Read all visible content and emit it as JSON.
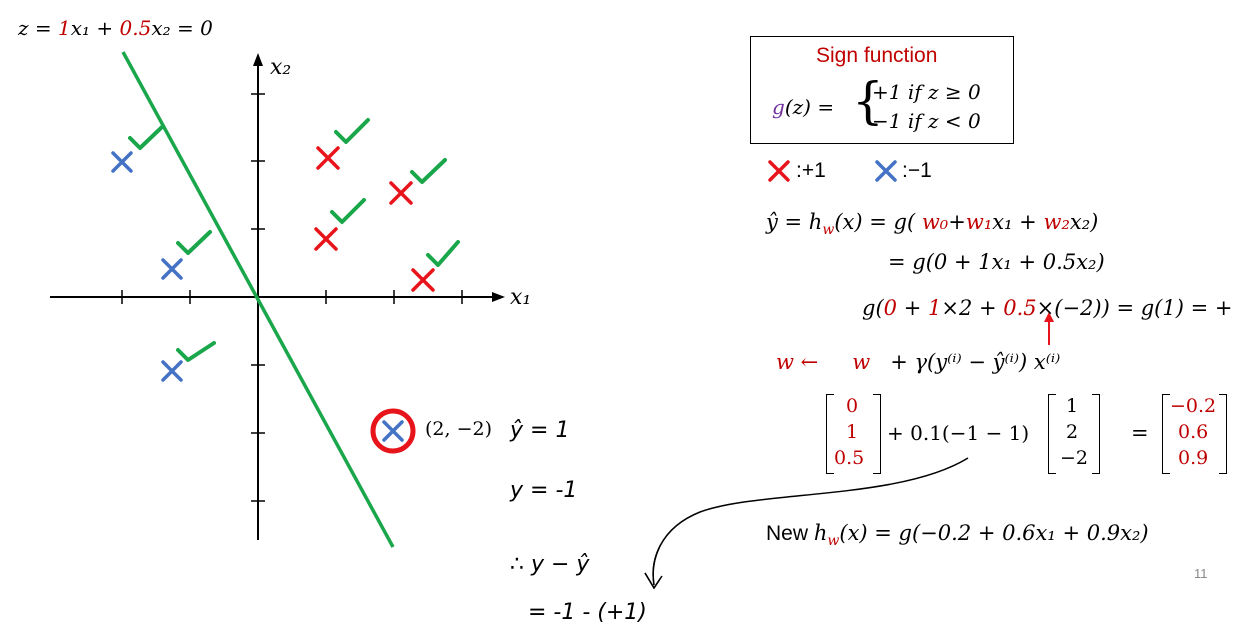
{
  "plot": {
    "line_label": {
      "z": "z = ",
      "w1": "1",
      "x1": "x₁ + ",
      "w2": "0.5",
      "x2": "x₂ = 0"
    },
    "x_axis_label": "x₁",
    "y_axis_label": "x₂",
    "circled_point_coord": "(2, −2)",
    "colors": {
      "red": "#e8141b",
      "blue": "#4472c4",
      "green": "#1aa64a",
      "circle": "#e8141b"
    }
  },
  "handwriting": {
    "line1": "ŷ = 1",
    "line2": "y = -1",
    "line3": "∴ y − ŷ",
    "line4": "= -1 - (+1)"
  },
  "sign_box": {
    "title": "Sign function",
    "g": "g",
    "lhs": "(z) =",
    "case1": "+1  if z ≥ 0",
    "case2": "−1  if z < 0"
  },
  "legend": {
    "pos": ":+1",
    "neg": ":−1"
  },
  "equations": {
    "yhat_lhs": "ŷ = h",
    "w_sub": "w",
    "yhat_mid": "(x) = g( ",
    "w0": "w₀",
    "plus_w1": "+",
    "w1": "w₁",
    "x1_term": "x₁ + ",
    "w2": "w₂",
    "x2_term": "x₂)",
    "line2": "= g(0 + 1x₁ + 0.5x₂)",
    "line3_a": "g(",
    "line3_b": "0",
    "line3_c": " + ",
    "line3_d": "1",
    "line3_e": "×2 + ",
    "line3_f": "0.5",
    "line3_g": "×(−2)) = g(1) = +",
    "update_w1": "w ←",
    "update_w2": "w",
    "update_rest": "+ γ(y⁽ⁱ⁾ − ŷ⁽ⁱ⁾) x⁽ⁱ⁾",
    "vec_w": [
      "0",
      "1",
      "0.5"
    ],
    "mult": "+ 0.1(−1 − 1)",
    "vec_x": [
      "1",
      "2",
      "−2"
    ],
    "equals": "=",
    "vec_new": [
      "−0.2",
      "0.6",
      "0.9"
    ],
    "new_h_prefix": "New ",
    "new_h_h": "h",
    "new_h_w": "w",
    "new_h_rest": "(x) = g(−0.2 + 0.6x₁ + 0.9x₂)"
  },
  "page_number": "11"
}
